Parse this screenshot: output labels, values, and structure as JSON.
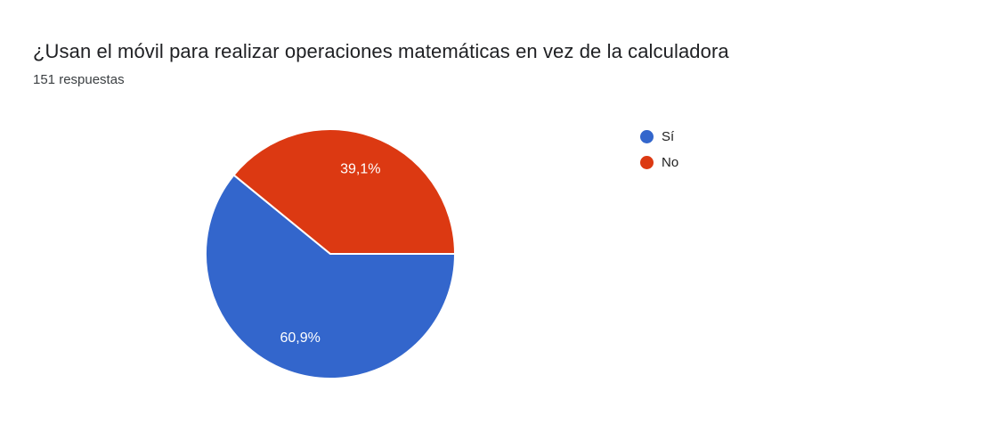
{
  "header": {
    "title": "¿Usan el móvil para realizar operaciones matemáticas en vez de la calculadora",
    "subtitle": "151 respuestas"
  },
  "chart_data": {
    "type": "pie",
    "title": "¿Usan el móvil para realizar operaciones matemáticas en vez de la calculadora",
    "response_count": 151,
    "categories": [
      "Sí",
      "No"
    ],
    "values": [
      60.9,
      39.1
    ],
    "unit": "%",
    "slices": [
      {
        "label": "Sí",
        "value": 60.9,
        "display": "60,9%",
        "color": "#3366CC"
      },
      {
        "label": "No",
        "value": 39.1,
        "display": "39,1%",
        "color": "#DC3912"
      }
    ],
    "start_angle_deg": 0,
    "direction": "clockwise",
    "legend_position": "right",
    "slice_label_color": "#ffffff",
    "slice_border_color": "#ffffff"
  }
}
